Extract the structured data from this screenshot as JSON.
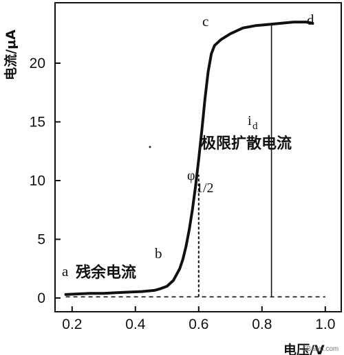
{
  "chart_data": {
    "type": "line",
    "xlabel": "电压/V",
    "ylabel": "电流/μA",
    "xlim": [
      0.17,
      1.02
    ],
    "ylim": [
      -1.5,
      25
    ],
    "x_ticks": [
      0.2,
      0.4,
      0.6,
      0.8,
      1.0
    ],
    "x_tick_labels": [
      "0.2",
      "0.4",
      "0.6",
      "0.8",
      "1.0"
    ],
    "y_ticks": [
      0,
      5,
      10,
      15,
      20
    ],
    "y_tick_labels": [
      "0",
      "5",
      "10",
      "15",
      "20"
    ],
    "grid": false,
    "series": [
      {
        "x": [
          0.18,
          0.22,
          0.26,
          0.3,
          0.34,
          0.38,
          0.42,
          0.46,
          0.48,
          0.5,
          0.52,
          0.54,
          0.55,
          0.56,
          0.57,
          0.58,
          0.59,
          0.6,
          0.61,
          0.62,
          0.63,
          0.64,
          0.65,
          0.67,
          0.7,
          0.74,
          0.78,
          0.82,
          0.86,
          0.9,
          0.94,
          0.96
        ],
        "y": [
          0.3,
          0.35,
          0.4,
          0.4,
          0.45,
          0.5,
          0.55,
          0.65,
          0.8,
          1.0,
          1.5,
          2.5,
          3.3,
          4.4,
          5.8,
          7.5,
          9.5,
          11.8,
          14.3,
          17.0,
          19.3,
          20.8,
          21.5,
          22.0,
          22.5,
          23.0,
          23.2,
          23.3,
          23.4,
          23.5,
          23.5,
          23.4
        ]
      }
    ],
    "reference_lines": {
      "residual_baseline_y": 0.1,
      "half_wave_x": 0.6,
      "limiting_current_x": 0.83
    },
    "annotations": {
      "point_a": "a",
      "point_b": "b",
      "point_c": "c",
      "point_d": "d",
      "residual_current": "残余电流",
      "limiting_diffusion_current": "极限扩散电流",
      "id_symbol": "i",
      "id_subscript": "d",
      "half_wave_symbol": "φ",
      "half_wave_subscript": "1/2"
    }
  },
  "watermark": "5Baiyu.com"
}
